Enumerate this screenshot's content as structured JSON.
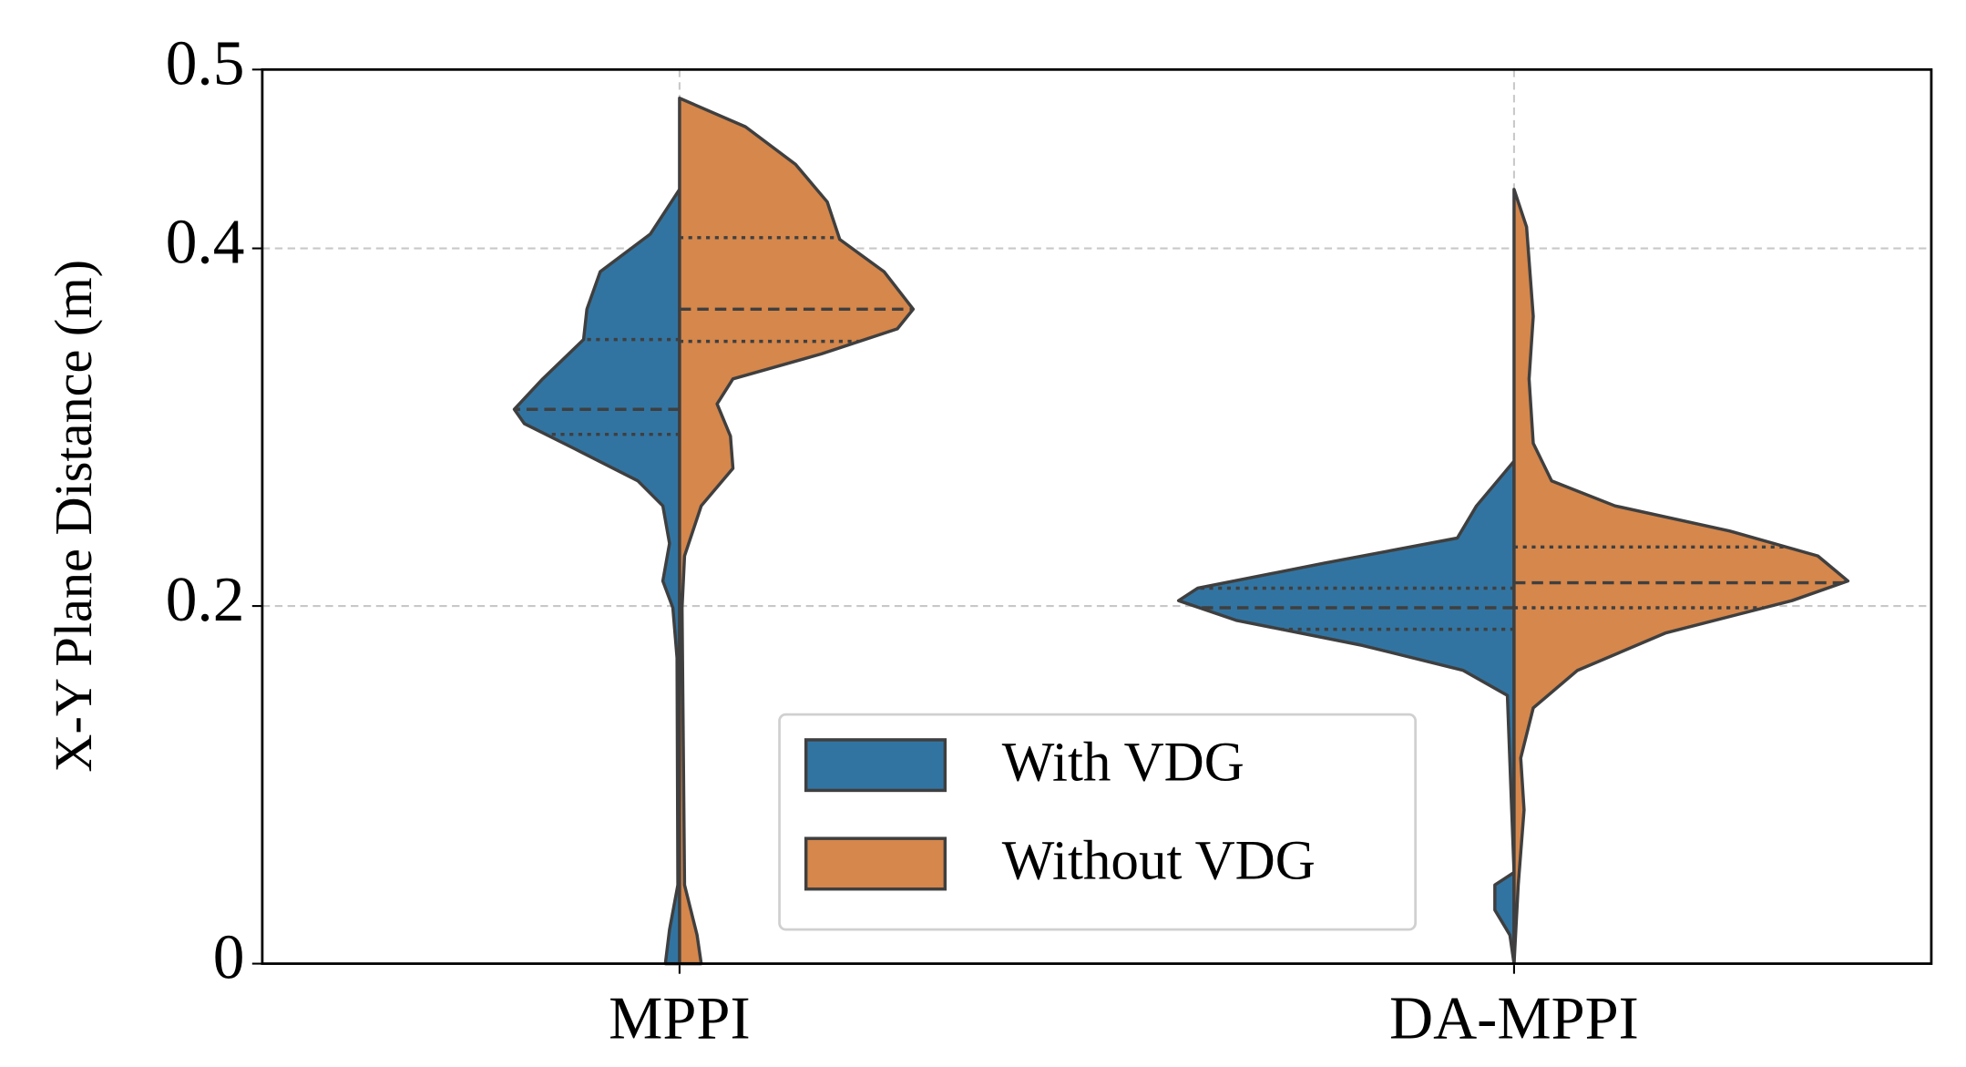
{
  "chart_data": {
    "type": "violin",
    "ylabel": "X-Y Plane Distance (m)",
    "categories": [
      "MPPI",
      "DA-MPPI"
    ],
    "ylim": [
      0,
      0.5
    ],
    "yticks": [
      0,
      0.2,
      0.4,
      0.5
    ],
    "grid": true,
    "legend": "lower center",
    "series": [
      {
        "name": "With VDG",
        "color": "#3274a1",
        "side": "left",
        "quartiles": [
          [
            0.296,
            0.31,
            0.349
          ],
          [
            0.187,
            0.199,
            0.21
          ]
        ],
        "density": [
          {
            "y": [
              0.433,
              0.408,
              0.387,
              0.366,
              0.349,
              0.327,
              0.31,
              0.302,
              0.288,
              0.27,
              0.256,
              0.235,
              0.214,
              0.199,
              0.171,
              0.044,
              0.019,
              0
            ],
            "half_width": [
              0,
              0.035,
              0.095,
              0.111,
              0.115,
              0.164,
              0.198,
              0.186,
              0.126,
              0.05,
              0.02,
              0.012,
              0.02,
              0.008,
              0.003,
              0.002,
              0.012,
              0.017
            ]
          },
          {
            "y": [
              0.281,
              0.256,
              0.238,
              0.224,
              0.21,
              0.203,
              0.192,
              0.178,
              0.164,
              0.15,
              0.051,
              0.044,
              0.03,
              0.016,
              0
            ],
            "half_width": [
              0,
              0.045,
              0.068,
              0.227,
              0.379,
              0.402,
              0.333,
              0.182,
              0.061,
              0.008,
              0,
              0.023,
              0.023,
              0.005,
              0
            ]
          }
        ]
      },
      {
        "name": "Without VDG",
        "color": "#d5874c",
        "side": "right",
        "quartiles": [
          [
            0.348,
            0.366,
            0.406
          ],
          [
            0.199,
            0.213,
            0.233
          ]
        ],
        "density": [
          {
            "y": [
              0.484,
              0.468,
              0.447,
              0.426,
              0.405,
              0.387,
              0.366,
              0.355,
              0.341,
              0.327,
              0.313,
              0.295,
              0.277,
              0.256,
              0.228,
              0.199,
              0.044,
              0.016,
              0
            ],
            "half_width": [
              0,
              0.079,
              0.139,
              0.177,
              0.192,
              0.245,
              0.28,
              0.261,
              0.17,
              0.064,
              0.045,
              0.061,
              0.064,
              0.026,
              0.006,
              0.003,
              0.006,
              0.021,
              0.026
            ]
          },
          {
            "y": [
              0.433,
              0.412,
              0.362,
              0.327,
              0.291,
              0.27,
              0.256,
              0.242,
              0.228,
              0.214,
              0.203,
              0.185,
              0.164,
              0.143,
              0.115,
              0.086,
              0.044,
              0
            ],
            "half_width": [
              0,
              0.015,
              0.023,
              0.018,
              0.023,
              0.045,
              0.121,
              0.258,
              0.364,
              0.4,
              0.333,
              0.182,
              0.076,
              0.023,
              0.008,
              0.012,
              0.005,
              0
            ]
          }
        ]
      }
    ]
  }
}
